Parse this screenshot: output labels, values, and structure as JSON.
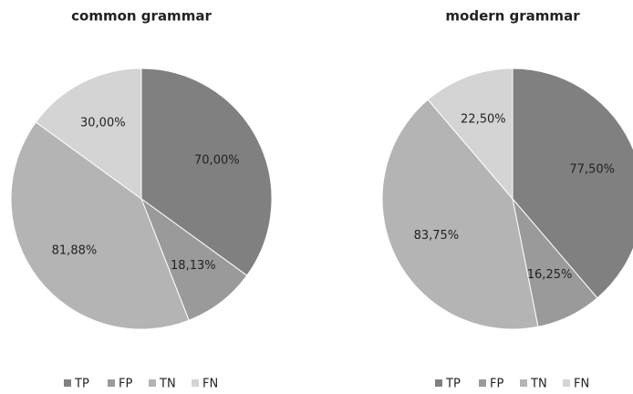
{
  "chart_data": [
    {
      "type": "pie",
      "title": "common grammar",
      "categories": [
        "TP",
        "FP",
        "TN",
        "FN"
      ],
      "values": [
        70.0,
        18.13,
        81.88,
        30.0
      ],
      "value_labels": [
        "70,00%",
        "18,13%",
        "81,88%",
        "30,00%"
      ],
      "colors": [
        "#808080",
        "#9a9a9a",
        "#b4b4b4",
        "#d4d4d4"
      ],
      "legend": "bottom"
    },
    {
      "type": "pie",
      "title": "modern grammar",
      "categories": [
        "TP",
        "FP",
        "TN",
        "FN"
      ],
      "values": [
        77.5,
        16.25,
        83.75,
        22.5
      ],
      "value_labels": [
        "77,50%",
        "16,25%",
        "83,75%",
        "22,50%"
      ],
      "colors": [
        "#808080",
        "#9a9a9a",
        "#b4b4b4",
        "#d4d4d4"
      ],
      "legend": "bottom"
    }
  ]
}
